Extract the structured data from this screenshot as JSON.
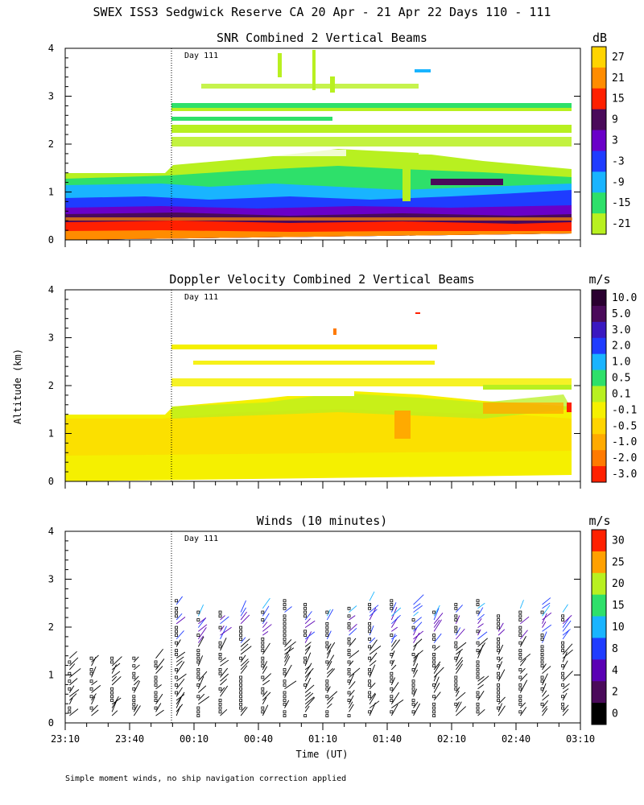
{
  "figure": {
    "title": "SWEX ISS3 Sedgwick Reserve CA  20 Apr - 21 Apr 22 Days 110 - 111",
    "ylabel": "Altitude (km)",
    "xlabel": "Time (UT)",
    "day_marker": "Day 111",
    "footnote": "Simple moment winds, no ship navigation correction applied"
  },
  "chart_data": [
    {
      "type": "heatmap",
      "title": "SNR Combined 2 Vertical Beams",
      "unit": "dB",
      "ylim": [
        0,
        4
      ],
      "yticks": [
        "0",
        "1",
        "2",
        "3",
        "4"
      ],
      "xrange": [
        "23:10",
        "03:10"
      ],
      "colorbar": {
        "labels": [
          "27",
          "21",
          "15",
          "9",
          "3",
          "-3",
          "-9",
          "-15",
          "-21"
        ],
        "colors": [
          "#ffd400",
          "#ff8c00",
          "#ff2000",
          "#4a0a5a",
          "#6a00c8",
          "#1f3cff",
          "#19b4ff",
          "#2ee06a",
          "#b8f020"
        ]
      }
    },
    {
      "type": "heatmap",
      "title": "Doppler Velocity Combined 2 Vertical Beams",
      "unit": "m/s",
      "ylim": [
        0,
        4
      ],
      "yticks": [
        "0",
        "1",
        "2",
        "3",
        "4"
      ],
      "xrange": [
        "23:10",
        "03:10"
      ],
      "colorbar": {
        "labels": [
          "10.0",
          "5.0",
          "3.0",
          "2.0",
          "1.0",
          "0.5",
          "0.1",
          "-0.1",
          "-0.5",
          "-1.0",
          "-2.0",
          "-3.0"
        ],
        "colors": [
          "#2a0030",
          "#4a0a5a",
          "#3a18c0",
          "#1f3cff",
          "#19b4ff",
          "#2ee06a",
          "#b8f020",
          "#f5f000",
          "#ffd400",
          "#ffaa00",
          "#ff7a00",
          "#ff2000"
        ]
      }
    },
    {
      "type": "scatter",
      "title": "Winds (10 minutes)",
      "unit": "m/s",
      "ylim": [
        0,
        4
      ],
      "yticks": [
        "0",
        "1",
        "2",
        "3",
        "4"
      ],
      "xticks": [
        "23:10",
        "23:40",
        "00:10",
        "00:40",
        "01:10",
        "01:40",
        "02:10",
        "02:40",
        "03:10"
      ],
      "colorbar": {
        "labels": [
          "30",
          "25",
          "20",
          "15",
          "10",
          "8",
          "4",
          "2",
          "0"
        ],
        "colors": [
          "#ff2000",
          "#ffa000",
          "#b8f020",
          "#2ee06a",
          "#19b4ff",
          "#1f3cff",
          "#5a00b4",
          "#4a0a5a",
          "#000000"
        ]
      },
      "profile_times_hours": [
        23.2,
        23.37,
        23.53,
        23.7,
        23.87,
        24.03,
        24.2,
        24.37,
        24.53,
        24.7,
        24.87,
        25.03,
        25.2,
        25.37,
        25.53,
        25.7,
        25.87,
        26.03,
        26.2,
        26.37,
        26.53,
        26.7,
        26.87,
        27.03
      ]
    }
  ]
}
